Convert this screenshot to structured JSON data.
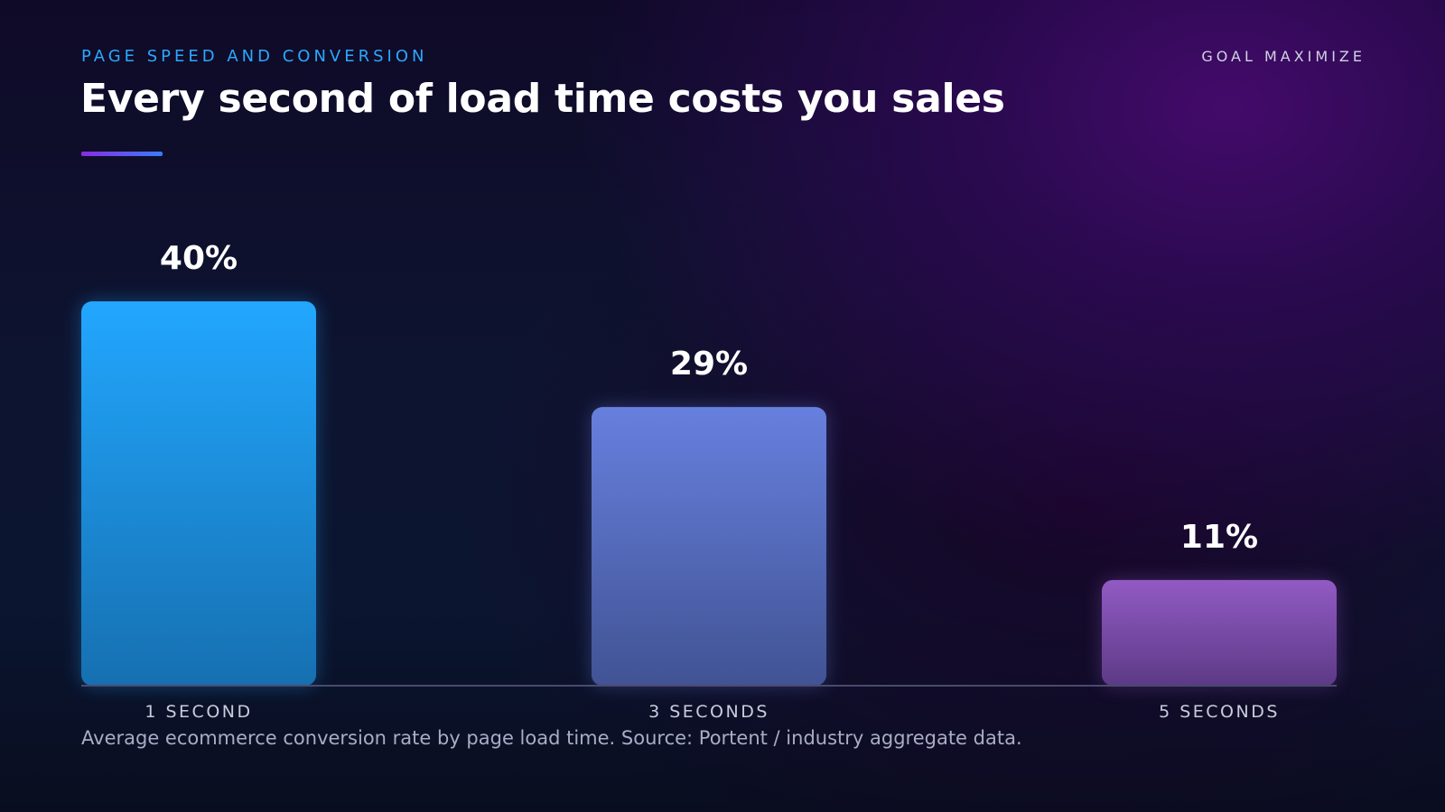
{
  "header": {
    "eyebrow": "PAGE SPEED AND CONVERSION",
    "tag": "GOAL MAXIMIZE",
    "title": "Every second of load time costs you sales"
  },
  "caption": "Average ecommerce conversion rate by page load time. Source: Portent / industry aggregate data.",
  "chart_data": {
    "type": "bar",
    "categories": [
      "1 SECOND",
      "3 SECONDS",
      "5 SECONDS"
    ],
    "values": [
      40,
      29,
      11
    ],
    "value_labels": [
      "40%",
      "29%",
      "11%"
    ],
    "ylim": [
      0,
      40
    ],
    "grid": false,
    "colors": [
      [
        "#22a7ff",
        "#1670b0"
      ],
      [
        "#6780de",
        "#415394"
      ],
      [
        "#925ac4",
        "#5c3a86"
      ]
    ],
    "axis_color": "#4a4a6e"
  }
}
